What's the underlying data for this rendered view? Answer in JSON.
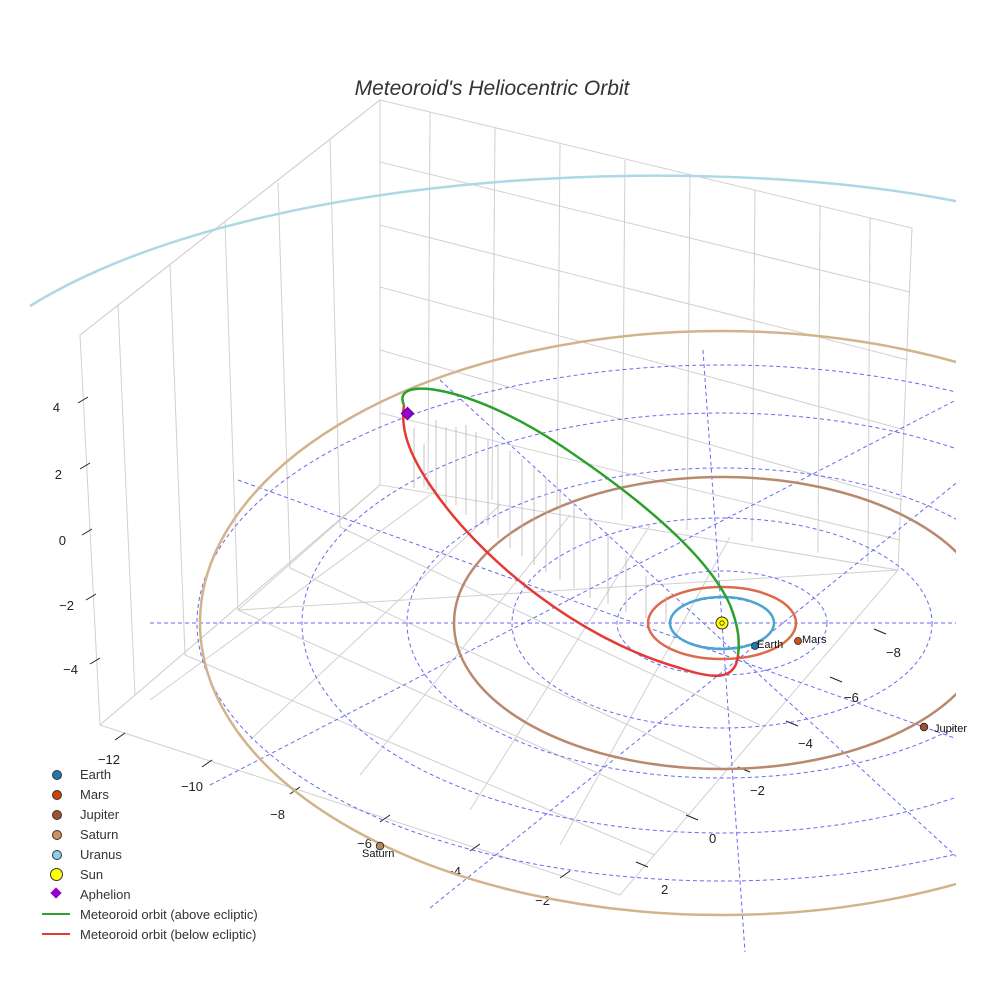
{
  "chart_data": {
    "type": "3d-line",
    "title": "Meteoroid's Heliocentric Orbit",
    "axes": {
      "x": {
        "ticks": [
          -12,
          -10,
          -8,
          -6,
          -4,
          -2
        ],
        "range": [
          -13,
          -1
        ]
      },
      "y": {
        "ticks": [
          -8,
          -6,
          -4,
          -2,
          0,
          2
        ],
        "range": [
          -9,
          3
        ]
      },
      "z": {
        "ticks": [
          4,
          2,
          0,
          -2,
          -4
        ],
        "range": [
          -5.5,
          5.5
        ]
      }
    },
    "bodies": [
      {
        "name": "Earth",
        "orbit_radius_au": 1.0,
        "color": "#1f77b4",
        "orbit_color": "#4aa3d0",
        "label": "Earth"
      },
      {
        "name": "Mars",
        "orbit_radius_au": 1.52,
        "color": "#d2501e",
        "orbit_color": "#dd7050",
        "label": "Mars"
      },
      {
        "name": "Jupiter",
        "orbit_radius_au": 5.2,
        "color": "#a0522d",
        "orbit_color": "#b9896e",
        "label": "Jupiter"
      },
      {
        "name": "Saturn",
        "orbit_radius_au": 9.58,
        "color": "#b8865a",
        "orbit_color": "#d9bb99",
        "label": "Saturn"
      },
      {
        "name": "Uranus",
        "orbit_radius_au": 19.2,
        "color": "#add8e6",
        "orbit_color": "#add8e6",
        "label": ""
      }
    ],
    "sun": {
      "name": "Sun",
      "color": "#ffff00"
    },
    "aphelion": {
      "name": "Aphelion",
      "color": "#9400d3",
      "z": 4.2
    },
    "meteoroid_orbit": {
      "above_ecliptic_color": "#2ca02c",
      "below_ecliptic_color": "#e53935"
    },
    "legend": [
      {
        "label": "Earth",
        "kind": "dot",
        "color": "#1f77b4"
      },
      {
        "label": "Mars",
        "kind": "dot",
        "color": "#cc4400"
      },
      {
        "label": "Jupiter",
        "kind": "dot",
        "color": "#a0522d"
      },
      {
        "label": "Saturn",
        "kind": "dot",
        "color": "#cd9060"
      },
      {
        "label": "Uranus",
        "kind": "dot",
        "color": "#8fd0e8"
      },
      {
        "label": "Sun",
        "kind": "sun",
        "color": "#ffff00"
      },
      {
        "label": "Aphelion",
        "kind": "diamond",
        "color": "#9400d3"
      },
      {
        "label": "Meteoroid orbit (above ecliptic)",
        "kind": "line",
        "color": "#2ca02c"
      },
      {
        "label": "Meteoroid orbit (below ecliptic)",
        "kind": "line",
        "color": "#e53935"
      }
    ]
  }
}
